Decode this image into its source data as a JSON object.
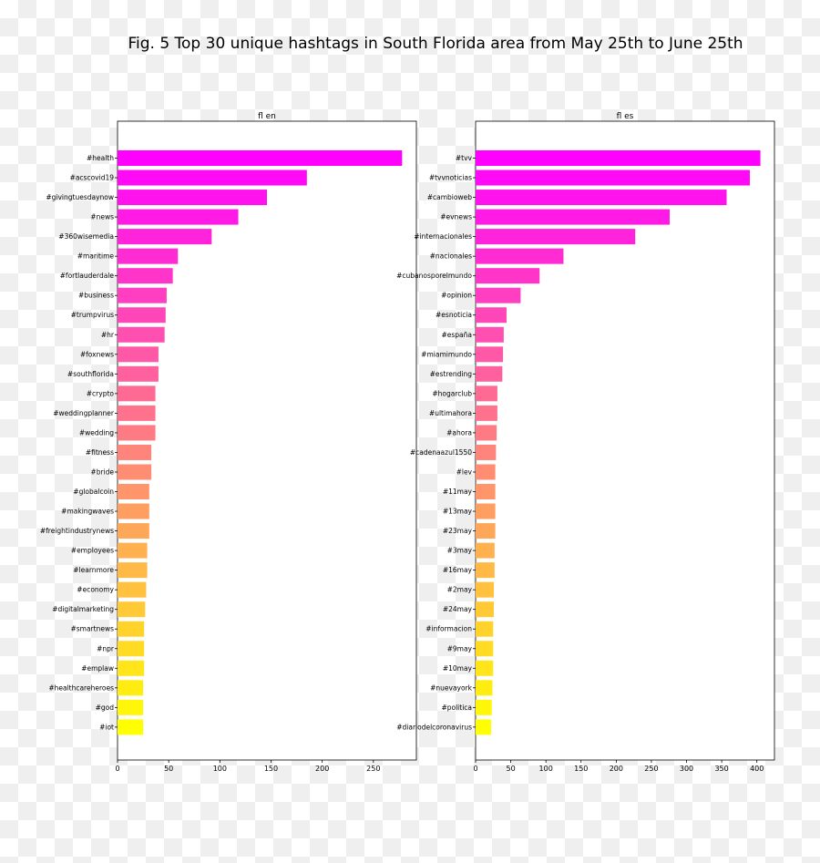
{
  "figure_title": "Fig. 5 Top 30 unique hashtags in South Florida area from May 25th to June 25th",
  "chart_data": [
    {
      "type": "bar",
      "orientation": "horizontal",
      "title": "fl en",
      "xlabel": "",
      "ylabel": "",
      "xlim": [
        0,
        292
      ],
      "xticks": [
        0,
        50,
        100,
        150,
        200,
        250
      ],
      "grid": false,
      "categories": [
        "#health",
        "#acscovid19",
        "#givingtuesdaynow",
        "#news",
        "#360wisemedia",
        "#maritime",
        "#fortlauderdale",
        "#business",
        "#trumpvirus",
        "#hr",
        "#foxnews",
        "#southflorida",
        "#crypto",
        "#weddingplanner",
        "#wedding",
        "#fitness",
        "#bride",
        "#globalcoin",
        "#makingwaves",
        "#freightindustrynews",
        "#employees",
        "#learnmore",
        "#economy",
        "#digitalmarketing",
        "#smartnews",
        "#npr",
        "#emplaw",
        "#healthcareheroes",
        "#god",
        "#iot"
      ],
      "values": [
        278,
        185,
        146,
        118,
        92,
        59,
        54,
        48,
        47,
        46,
        40,
        40,
        37,
        37,
        37,
        33,
        33,
        31,
        31,
        31,
        29,
        29,
        28,
        27,
        26,
        26,
        26,
        25,
        25,
        25
      ],
      "colormap": "spring"
    },
    {
      "type": "bar",
      "orientation": "horizontal",
      "title": "fl es",
      "xlabel": "",
      "ylabel": "",
      "xlim": [
        0,
        425
      ],
      "xticks": [
        0,
        50,
        100,
        150,
        200,
        250,
        300,
        350,
        400
      ],
      "grid": false,
      "categories": [
        "#tvv",
        "#tvvnoticias",
        "#cambioweb",
        "#evnews",
        "#internacionales",
        "#nacionales",
        "#cubanosporelmundo",
        "#opinion",
        "#esnoticia",
        "#españa",
        "#miamimundo",
        "#estrending",
        "#hogarclub",
        "#ultimahora",
        "#ahora",
        "#cadenaazul1550",
        "#lev",
        "#11may",
        "#13may",
        "#23may",
        "#3may",
        "#16may",
        "#2may",
        "#24may",
        "#informacion",
        "#9may",
        "#10may",
        "#nuevayork",
        "#politica",
        "#diariodelcoronavirus"
      ],
      "values": [
        405,
        390,
        357,
        276,
        227,
        125,
        91,
        64,
        44,
        40,
        39,
        38,
        31,
        31,
        30,
        29,
        28,
        28,
        28,
        28,
        27,
        27,
        26,
        26,
        25,
        25,
        25,
        24,
        23,
        22
      ],
      "colormap": "spring"
    }
  ]
}
